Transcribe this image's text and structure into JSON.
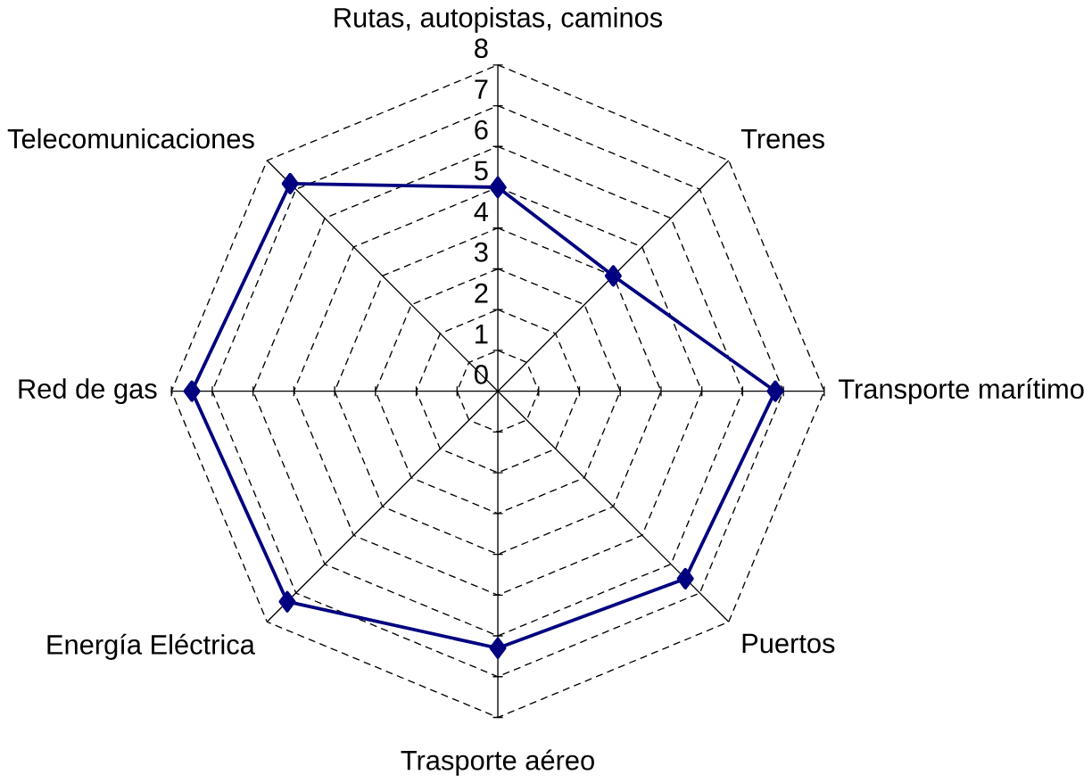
{
  "chart_data": {
    "type": "radar",
    "categories": [
      "Rutas, autopistas, caminos",
      "Trenes",
      "Transporte marítimo",
      "Puertos",
      "Trasporte aéreo",
      "Energía Eléctrica",
      "Red de gas",
      "Telecomunicaciones"
    ],
    "series": [
      {
        "color": "#000080",
        "values": [
          5,
          4,
          6.8,
          6.5,
          6.3,
          7.3,
          7.5,
          7.2
        ]
      }
    ],
    "ylim": [
      0,
      8
    ],
    "yticks": [
      0,
      1,
      2,
      3,
      4,
      5,
      6,
      7,
      8
    ],
    "grid": true,
    "marker": "diamond",
    "line_style": "solid"
  }
}
